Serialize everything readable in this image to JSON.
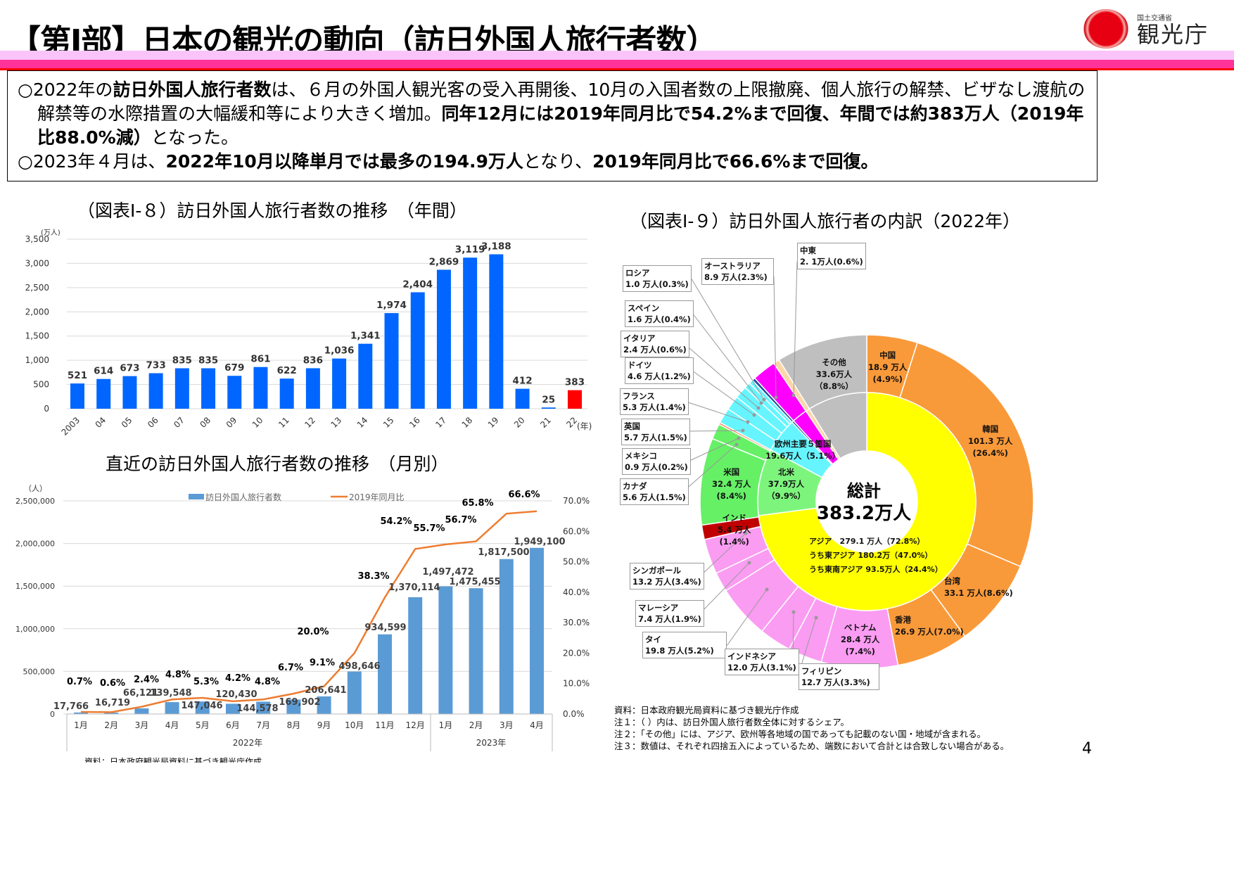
{
  "header": {
    "title": "【第Ⅰ部】日本の観光の動向（訪日外国人旅行者数）",
    "logo_ministry": "国土交通省",
    "logo_agency": "観光庁"
  },
  "intro": {
    "p1": [
      {
        "text": "○2022年の",
        "bold": false
      },
      {
        "text": "訪日外国人旅行者数",
        "bold": true
      },
      {
        "text": "は、６月の外国人観光客の受入再開後、10月の入国者数の上限撤廃、個人旅行の解禁、ビザなし渡航の解禁等の水際措置の大幅緩和等により大きく増加。",
        "bold": false
      },
      {
        "text": "同年12月には2019年同月比で54.2%まで回復、年間では約383万人（2019年比88.0%減）",
        "bold": true
      },
      {
        "text": "となった。",
        "bold": false
      }
    ],
    "p2": [
      {
        "text": "○2023年４月は、",
        "bold": false
      },
      {
        "text": "2022年10月以降単月では最多の194.9万人",
        "bold": true
      },
      {
        "text": "となり、",
        "bold": false
      },
      {
        "text": "2019年同月比で66.6%まで回復。",
        "bold": true
      }
    ]
  },
  "annual_title": "（図表Ⅰ-８）訪日外国人旅行者数の推移　（年間）",
  "monthly_title": "直近の訪日外国人旅行者数の推移　（月別）",
  "donut_title": "（図表Ⅰ-９）訪日外国人旅行者の内訳（2022年）",
  "chart_data": [
    {
      "type": "bar",
      "ylabel": "(万人)",
      "xlabel": "(年)",
      "ylim": [
        0,
        3500
      ],
      "yticks": [
        "0",
        "500",
        "1,000",
        "1,500",
        "2,000",
        "2,500",
        "3,000",
        "3,500"
      ],
      "categories": [
        "2003",
        "04",
        "05",
        "06",
        "07",
        "08",
        "09",
        "10",
        "11",
        "12",
        "13",
        "14",
        "15",
        "16",
        "17",
        "18",
        "19",
        "20",
        "21",
        "22"
      ],
      "values": [
        521,
        614,
        673,
        733,
        835,
        835,
        679,
        861,
        622,
        836,
        1036,
        1341,
        1974,
        2404,
        2869,
        3119,
        3188,
        412,
        25,
        383
      ],
      "labels": [
        "521",
        "614",
        "673",
        "733",
        "835",
        "835",
        "679",
        "861",
        "622",
        "836",
        "1,036",
        "1,341",
        "1,974",
        "2,404",
        "2,869",
        "3,119",
        "3,188",
        "412",
        "25",
        "383"
      ],
      "bar_color": "#0066ff",
      "highlight_color": "#ff0000",
      "grid": true
    },
    {
      "type": "bar+line",
      "ylabel": "（人）",
      "ylim": [
        0,
        2500000
      ],
      "y2lim": [
        0,
        70
      ],
      "yticks": [
        "0",
        "500,000",
        "1,000,000",
        "1,500,000",
        "2,000,000",
        "2,500,000"
      ],
      "y2ticks": [
        "0.0%",
        "10.0%",
        "20.0%",
        "30.0%",
        "40.0%",
        "50.0%",
        "60.0%",
        "70.0%"
      ],
      "categories": [
        "1月",
        "2月",
        "3月",
        "4月",
        "5月",
        "6月",
        "7月",
        "8月",
        "9月",
        "10月",
        "11月",
        "12月",
        "1月",
        "2月",
        "3月",
        "4月"
      ],
      "groups": [
        {
          "label": "2022年"
        },
        {
          "label": "2023年"
        }
      ],
      "series": [
        {
          "name": "訪日外国人旅行者数",
          "type": "bar",
          "color": "#5b9bd5",
          "values": [
            17766,
            16719,
            66121,
            139548,
            147046,
            120430,
            144578,
            169902,
            206641,
            498646,
            934599,
            1370114,
            1497472,
            1475455,
            1817500,
            1949100
          ],
          "labels": [
            "17,766",
            "16,719",
            "66,121",
            "139,548",
            "147,046",
            "120,430",
            "144,578",
            "169,902",
            "206,641",
            "498,646",
            "934,599",
            "1,370,114",
            "1,497,472",
            "1,475,455",
            "1,817,500",
            "1,949,100"
          ]
        },
        {
          "name": "2019年同月比",
          "type": "line",
          "color": "#ed7d31",
          "values": [
            0.7,
            0.6,
            2.4,
            4.8,
            5.3,
            4.2,
            4.8,
            6.7,
            9.1,
            20.0,
            38.3,
            54.2,
            55.7,
            56.7,
            65.8,
            66.6
          ],
          "labels": [
            "0.7%",
            "0.6%",
            "2.4%",
            "4.8%",
            "5.3%",
            "4.2%",
            "4.8%",
            "6.7%",
            "9.1%",
            "20.0%",
            "38.3%",
            "54.2%",
            "55.7%",
            "56.7%",
            "65.8%",
            "66.6%"
          ]
        }
      ],
      "grid": true,
      "legend": "top"
    },
    {
      "type": "pie",
      "total_label": "総計",
      "total_value": "383.2万人",
      "inner": [
        {
          "name": "アジア",
          "value": 72.8,
          "color": "#ffff00"
        },
        {
          "name": "北米",
          "value": 9.9,
          "color": "#7df57d"
        },
        {
          "name": "欧州主要５箇国",
          "value": 5.1,
          "color": "#66f5ff"
        },
        {
          "name": "ロシア",
          "value": 0.3,
          "color": "#1f4e9a"
        },
        {
          "name": "オーストラリア",
          "value": 2.3,
          "color": "#ff00ff"
        },
        {
          "name": "中東",
          "value": 0.6,
          "color": "#fdd6a8"
        },
        {
          "name": "その他",
          "value": 8.8,
          "color": "#bfbfbf"
        }
      ],
      "outer": [
        {
          "name": "中国",
          "value": 4.9,
          "color": "#f99a3a"
        },
        {
          "name": "韓国",
          "value": 26.4,
          "color": "#f99a3a"
        },
        {
          "name": "台湾",
          "value": 8.6,
          "color": "#f99a3a"
        },
        {
          "name": "香港",
          "value": 7.0,
          "color": "#f99a3a"
        },
        {
          "name": "ベトナム",
          "value": 7.4,
          "color": "#fa9cf2"
        },
        {
          "name": "フィリピン",
          "value": 3.3,
          "color": "#fa9cf2"
        },
        {
          "name": "インドネシア",
          "value": 3.1,
          "color": "#fa9cf2"
        },
        {
          "name": "タイ",
          "value": 5.2,
          "color": "#fa9cf2"
        },
        {
          "name": "マレーシア",
          "value": 1.9,
          "color": "#fa9cf2"
        },
        {
          "name": "シンガポール",
          "value": 3.4,
          "color": "#fa9cf2"
        },
        {
          "name": "インド",
          "value": 1.4,
          "color": "#c00000"
        },
        {
          "name": "米国",
          "value": 8.4,
          "color": "#66f066"
        },
        {
          "name": "カナダ",
          "value": 1.5,
          "color": "#66f066"
        },
        {
          "name": "メキシコ",
          "value": 0.2,
          "color": "#ff7f50"
        },
        {
          "name": "英国",
          "value": 1.5,
          "color": "#66f5ff"
        },
        {
          "name": "フランス",
          "value": 1.4,
          "color": "#66f5ff"
        },
        {
          "name": "ドイツ",
          "value": 1.2,
          "color": "#66f5ff"
        },
        {
          "name": "イタリア",
          "value": 0.6,
          "color": "#66f5ff"
        },
        {
          "name": "スペイン",
          "value": 0.4,
          "color": "#66f5ff"
        },
        {
          "name": "ロシア",
          "value": 0.3,
          "color": "#1f4e9a"
        },
        {
          "name": "オーストラリア",
          "value": 2.3,
          "color": "#ff00ff"
        },
        {
          "name": "中東",
          "value": 0.6,
          "color": "#fdd6a8"
        },
        {
          "name": "その他",
          "value": 8.8,
          "color": "#bfbfbf"
        }
      ]
    }
  ],
  "donut_labels": {
    "boxes": [
      {
        "name": "中東",
        "value": "2. 1万人(0.6%)"
      },
      {
        "name": "オーストラリア",
        "value": "8.9 万人(2.3%)"
      },
      {
        "name": "ロシア",
        "value": "1.0 万人(0.3%)"
      },
      {
        "name": "スペイン",
        "value": "1.6 万人(0.4%)"
      },
      {
        "name": "イタリア",
        "value": "2.4 万人(0.6%)"
      },
      {
        "name": "ドイツ",
        "value": "4.6 万人(1.2%)"
      },
      {
        "name": "フランス",
        "value": "5.3 万人(1.4%)"
      },
      {
        "name": "英国",
        "value": "5.7 万人(1.5%)"
      },
      {
        "name": "メキシコ",
        "value": "0.9 万人(0.2%)"
      },
      {
        "name": "カナダ",
        "value": "5.6 万人(1.5%)"
      },
      {
        "name": "シンガポール",
        "value": "13.2 万人(3.4%)"
      },
      {
        "name": "マレーシア",
        "value": "7.4 万人(1.9%)"
      },
      {
        "name": "タイ",
        "value": "19.8 万人(5.2%)"
      },
      {
        "name": "インドネシア",
        "value": "12.0 万人(3.1%)"
      },
      {
        "name": "フィリピン",
        "value": "12.7 万人(3.3%)"
      }
    ],
    "inline": [
      {
        "name": "その他",
        "value": "33.6万人",
        "share": "（8.8%）"
      },
      {
        "name": "中国",
        "value": "18.9 万人",
        "share": "(4.9%)"
      },
      {
        "name": "韓国",
        "value": "101.3 万人",
        "share": "(26.4%)"
      },
      {
        "name": "台湾",
        "value": "33.1 万人(8.6%)",
        "share": ""
      },
      {
        "name": "香港",
        "value": "26.9 万人(7.0%)",
        "share": ""
      },
      {
        "name": "ベトナム",
        "value": "28.4 万人",
        "share": "(7.4%)"
      },
      {
        "name": "米国",
        "value": "32.4 万人",
        "share": "(8.4%)"
      },
      {
        "name": "北米",
        "value": "37.9万人",
        "share": "（9.9%）"
      },
      {
        "name": "欧州主要５箇国",
        "value": "19.6万人（5.1%）",
        "share": ""
      },
      {
        "name": "インド",
        "value": "5.4 万人",
        "share": "(1.4%)"
      }
    ],
    "asia": [
      "アジア　279.1 万人（72.8%）",
      "うち東アジア 180.2万（47.0%）",
      "うち東南アジア 93.5万人（24.4%）"
    ]
  },
  "notes": [
    "資料：日本政府観光局資料に基づき観光庁作成",
    "注１：（ ）内は、訪日外国人旅行者数全体に対するシェア。",
    "注２：「その他」には、アジア、欧州等各地域の国であっても記載のない国・地域が含まれる。",
    "注３：数値は、それぞれ四捨五入によっているため、端数において合計とは合致しない場合がある。"
  ],
  "monthly_source": "資料：日本政府観光局資料に基づき観光庁作成",
  "page_number": "4"
}
